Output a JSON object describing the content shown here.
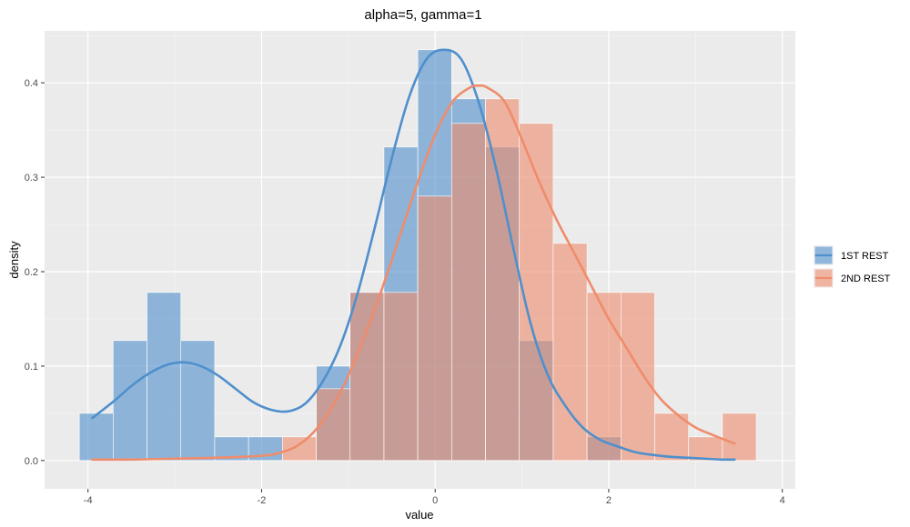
{
  "chart_data": {
    "type": "bar",
    "subtype": "overlaid histogram with density curves",
    "title": "alpha=5, gamma=1",
    "xlabel": "value",
    "ylabel": "density",
    "xlim": [
      -4.5,
      4.15
    ],
    "ylim": [
      -0.03,
      0.455
    ],
    "x_ticks": [
      -4,
      -2,
      0,
      2,
      4
    ],
    "x_tick_labels": [
      "-4",
      "-2",
      "0",
      "2",
      "4"
    ],
    "y_ticks": [
      0.0,
      0.1,
      0.2,
      0.3,
      0.4
    ],
    "y_tick_labels": [
      "0.0",
      "0.1",
      "0.2",
      "0.3",
      "0.4"
    ],
    "grid": true,
    "legend_position": "right",
    "bins": [
      [
        -4.1,
        -3.71
      ],
      [
        -3.71,
        -3.32
      ],
      [
        -3.32,
        -2.93
      ],
      [
        -2.93,
        -2.54
      ],
      [
        -2.54,
        -2.15
      ],
      [
        -2.15,
        -1.76
      ],
      [
        -1.76,
        -1.37
      ],
      [
        -1.37,
        -0.98
      ],
      [
        -0.98,
        -0.59
      ],
      [
        -0.59,
        -0.2
      ],
      [
        -0.2,
        0.19
      ],
      [
        0.19,
        0.58
      ],
      [
        0.58,
        0.97
      ],
      [
        0.97,
        1.36
      ],
      [
        1.36,
        1.75
      ],
      [
        1.75,
        2.14
      ],
      [
        2.14,
        2.53
      ],
      [
        2.53,
        2.92
      ],
      [
        2.92,
        3.31
      ],
      [
        3.31,
        3.7
      ]
    ],
    "series": [
      {
        "name": "1ST REST",
        "color": "#4f8fcc",
        "bin_densities": [
          0.05,
          0.127,
          0.178,
          0.127,
          0.025,
          0.025,
          0,
          0.1,
          0.178,
          0.332,
          0.435,
          0.383,
          0.332,
          0.127,
          0,
          0.025,
          0,
          0,
          0,
          0
        ],
        "density_curve": {
          "x": [
            -3.95,
            -3.7,
            -3.5,
            -3.3,
            -3.1,
            -2.9,
            -2.7,
            -2.5,
            -2.3,
            -2.1,
            -1.9,
            -1.7,
            -1.5,
            -1.3,
            -1.1,
            -0.9,
            -0.7,
            -0.5,
            -0.3,
            -0.1,
            0.1,
            0.3,
            0.5,
            0.7,
            0.9,
            1.1,
            1.3,
            1.5,
            1.7,
            1.9,
            2.1,
            2.3,
            2.5,
            2.7,
            2.9,
            3.1,
            3.3,
            3.45
          ],
          "y": [
            0.045,
            0.063,
            0.079,
            0.092,
            0.101,
            0.104,
            0.1,
            0.09,
            0.076,
            0.062,
            0.054,
            0.052,
            0.06,
            0.083,
            0.12,
            0.175,
            0.245,
            0.32,
            0.385,
            0.425,
            0.435,
            0.425,
            0.38,
            0.31,
            0.225,
            0.145,
            0.09,
            0.058,
            0.035,
            0.022,
            0.015,
            0.009,
            0.006,
            0.004,
            0.003,
            0.002,
            0.001,
            0.001
          ]
        }
      },
      {
        "name": "2ND REST",
        "color": "#ef8c6c",
        "bin_densities": [
          0,
          0,
          0,
          0,
          0,
          0,
          0.025,
          0.076,
          0.178,
          0.178,
          0.28,
          0.357,
          0.383,
          0.357,
          0.23,
          0.178,
          0.178,
          0.05,
          0.025,
          0.05
        ],
        "density_curve": {
          "x": [
            -3.95,
            -3.5,
            -3.0,
            -2.5,
            -2.0,
            -1.8,
            -1.6,
            -1.4,
            -1.2,
            -1.0,
            -0.8,
            -0.6,
            -0.4,
            -0.2,
            0.0,
            0.2,
            0.4,
            0.5,
            0.6,
            0.8,
            1.0,
            1.2,
            1.4,
            1.6,
            1.8,
            2.0,
            2.2,
            2.4,
            2.6,
            2.8,
            3.0,
            3.2,
            3.45
          ],
          "y": [
            0.001,
            0.001,
            0.002,
            0.003,
            0.005,
            0.008,
            0.015,
            0.03,
            0.055,
            0.09,
            0.135,
            0.185,
            0.24,
            0.295,
            0.345,
            0.38,
            0.395,
            0.397,
            0.395,
            0.38,
            0.34,
            0.295,
            0.255,
            0.22,
            0.185,
            0.15,
            0.12,
            0.09,
            0.065,
            0.048,
            0.035,
            0.027,
            0.018
          ]
        }
      }
    ]
  }
}
